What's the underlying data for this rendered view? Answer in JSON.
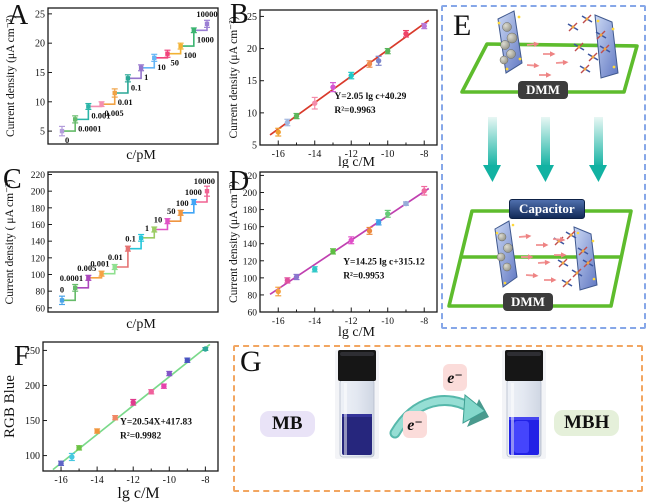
{
  "panels": {
    "a": {
      "letter": "A"
    },
    "b": {
      "letter": "B"
    },
    "c": {
      "letter": "C"
    },
    "d": {
      "letter": "D"
    },
    "e": {
      "letter": "E",
      "dmm_top": "DMM",
      "capacitor": "Capacitor",
      "dmm_bottom": "DMM"
    },
    "f": {
      "letter": "F"
    },
    "g": {
      "letter": "G",
      "mb": "MB",
      "mbh": "MBH",
      "electron_top": "e⁻",
      "electron_bottom": "e⁻"
    }
  },
  "colors": {
    "loop_green": "#5ebc2d",
    "dashed_border_blue": "#86a7e8",
    "dashed_border_orange": "#f2a661",
    "teal_arrow": "#14b3a4",
    "mb_liquid": "#26267d",
    "mbh_liquid": "#2121e6"
  },
  "chart_data": [
    {
      "panel": "A",
      "type": "step",
      "xlabel": "c/pM",
      "ylabel": "Current density (μA cm⁻²)",
      "categories": [
        "0",
        "0.0001",
        "0.001",
        "0.005",
        "0.01",
        "0.1",
        "1",
        "10",
        "50",
        "100",
        "1000",
        "10000"
      ],
      "values": [
        5.0,
        7.0,
        9.2,
        9.6,
        11.5,
        14.0,
        15.8,
        17.5,
        18.2,
        19.5,
        22.2,
        23.3
      ],
      "errors": [
        0.8,
        0.6,
        0.5,
        0.4,
        0.7,
        0.6,
        0.5,
        0.6,
        0.6,
        0.5,
        0.4,
        0.6
      ],
      "ylim": [
        2.8,
        26
      ],
      "yticks": [
        5,
        10,
        15,
        20,
        25
      ],
      "grid": false,
      "point_colors": [
        "#b39ddb",
        "#66bb6a",
        "#2bb5a8",
        "#f48fb1",
        "#f0a245",
        "#2aa796",
        "#9575cd",
        "#64b5f6",
        "#f0437c",
        "#f2b234",
        "#3cb371",
        "#9b7fd4"
      ],
      "label_side": "below"
    },
    {
      "panel": "B",
      "type": "scatter",
      "xlabel": "lg c/M",
      "ylabel": "Current density (μA cm⁻²)",
      "x": [
        -16,
        -15.5,
        -15,
        -14,
        -13,
        -12,
        -11,
        -10.5,
        -10,
        -9,
        -8
      ],
      "y": [
        7.0,
        8.5,
        9.5,
        11.5,
        14.0,
        15.8,
        17.6,
        18.1,
        19.6,
        22.3,
        23.5
      ],
      "errors": [
        0.6,
        0.5,
        0.4,
        0.9,
        0.7,
        0.5,
        0.5,
        0.7,
        0.4,
        0.5,
        0.4
      ],
      "xlim": [
        -17,
        -7.3
      ],
      "ylim": [
        5,
        26
      ],
      "xticks": [
        -16,
        -14,
        -12,
        -10,
        -8
      ],
      "yticks": [
        5,
        10,
        15,
        20,
        25
      ],
      "grid": false,
      "fit": {
        "slope": 2.05,
        "intercept": 40.29,
        "line1": "Y=2.05 lg c+40.29",
        "line2": "R²=0.9963",
        "color": "#d93a2b"
      },
      "point_colors": [
        "#f0a030",
        "#a3b8e0",
        "#5cb85c",
        "#f48caa",
        "#d457d4",
        "#20c8c8",
        "#ef8c4e",
        "#7a84ca",
        "#58b45a",
        "#ee4468",
        "#b878d8"
      ]
    },
    {
      "panel": "C",
      "type": "step",
      "xlabel": "c/pM",
      "ylabel": "Current density ( μA cm⁻²)",
      "categories": [
        "0",
        "0.0001",
        "0.005",
        "0.001",
        "0.01",
        "0.1",
        "1",
        "10",
        "50",
        "100",
        "1000",
        "10000"
      ],
      "values": [
        69,
        84,
        96,
        101,
        109,
        131,
        144,
        154,
        164,
        174,
        187,
        200
      ],
      "errors": [
        5,
        4,
        3,
        3,
        3,
        3,
        4,
        3,
        3,
        3,
        3,
        6
      ],
      "ylim": [
        55,
        223
      ],
      "yticks": [
        60,
        80,
        100,
        120,
        140,
        160,
        180,
        200,
        220
      ],
      "grid": false,
      "point_colors": [
        "#4aa3e8",
        "#66bb6a",
        "#ab47bc",
        "#f5a243",
        "#90e090",
        "#e57373",
        "#26c6da",
        "#9ccc65",
        "#e052c6",
        "#ef9540",
        "#42a5f5",
        "#f06292"
      ],
      "label_side": "above"
    },
    {
      "panel": "D",
      "type": "scatter",
      "xlabel": "lg c/M",
      "ylabel": "Current density (μA cm⁻²)",
      "x": [
        -16,
        -15.5,
        -15,
        -14,
        -13,
        -12,
        -11,
        -10.5,
        -10,
        -9,
        -8
      ],
      "y": [
        84,
        97,
        101,
        110,
        131,
        144,
        155,
        165,
        175,
        187,
        202
      ],
      "errors": [
        5,
        3,
        3,
        3,
        3,
        4,
        4,
        3,
        4,
        2,
        5
      ],
      "xlim": [
        -17,
        -7.3
      ],
      "ylim": [
        60,
        224
      ],
      "xticks": [
        -16,
        -14,
        -12,
        -10,
        -8
      ],
      "yticks": [
        60,
        80,
        100,
        120,
        140,
        160,
        180,
        200,
        220
      ],
      "grid": false,
      "fit": {
        "slope": 14.25,
        "intercept": 315.12,
        "line1": "Y=14.25 lg c+315.12",
        "line2": "R²=0.9953",
        "color": "#c040b0"
      },
      "point_colors": [
        "#f5a340",
        "#e0509e",
        "#8a76ce",
        "#30c8c8",
        "#5cbe42",
        "#e04ec8",
        "#ec8a3e",
        "#3f9fe8",
        "#66cc77",
        "#98abd8",
        "#f0699e"
      ]
    },
    {
      "panel": "F",
      "type": "scatter",
      "xlabel": "lg c/M",
      "ylabel": "RGB Blue",
      "x": [
        -16,
        -15.4,
        -15,
        -14,
        -13,
        -12,
        -11,
        -10.3,
        -10,
        -9,
        -8
      ],
      "y": [
        89,
        98,
        111,
        135,
        154,
        176,
        191,
        199,
        217,
        236,
        252
      ],
      "errors": [
        3,
        5,
        3,
        3,
        3,
        4,
        3,
        3,
        3,
        3,
        2
      ],
      "xlim": [
        -17,
        -7.3
      ],
      "ylim": [
        78,
        262
      ],
      "xticks": [
        -16,
        -14,
        -12,
        -10,
        -8
      ],
      "yticks": [
        100,
        150,
        200,
        250
      ],
      "grid": false,
      "fit": {
        "slope": 20.54,
        "intercept": 417.83,
        "line1": "Y=20.54X+417.83",
        "line2": "R²=0.9982",
        "color": "#7ad98a"
      },
      "point_colors": [
        "#5f64c6",
        "#45c8e0",
        "#6cc244",
        "#f0953c",
        "#f08765",
        "#e03a8e",
        "#f0609c",
        "#e643ac",
        "#8355c8",
        "#4853c0",
        "#2ea89a"
      ]
    }
  ]
}
